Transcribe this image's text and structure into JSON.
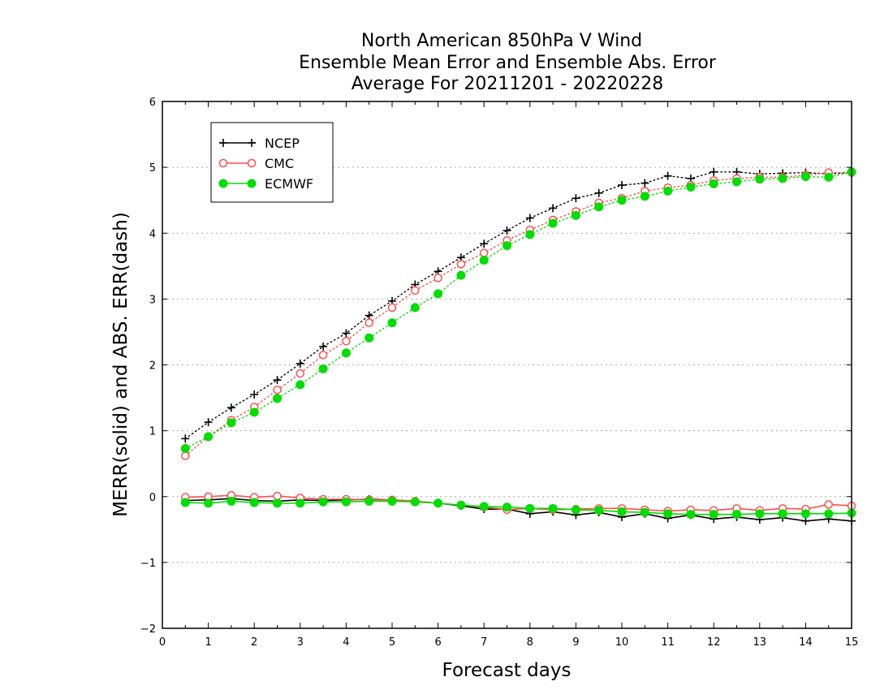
{
  "chart_data": {
    "type": "line",
    "title": [
      "North American 850hPa V Wind",
      "Ensemble Mean Error and Ensemble Abs. Error",
      "Average For 20211201 - 20220228"
    ],
    "xlabel": "Forecast days",
    "ylabel": "MERR(solid) and ABS. ERR(dash)",
    "xlim": [
      0,
      15
    ],
    "ylim": [
      -2,
      6
    ],
    "xticks": [
      0,
      1,
      2,
      3,
      4,
      5,
      6,
      7,
      8,
      9,
      10,
      11,
      12,
      13,
      14,
      15
    ],
    "yticks": [
      -2,
      -1,
      0,
      1,
      2,
      3,
      4,
      5,
      6
    ],
    "ytick_labels": [
      "−2",
      "−1",
      "0",
      "1",
      "2",
      "3",
      "4",
      "5",
      "6"
    ],
    "grid": "horizontal dotted",
    "legend_position": "top-left",
    "x": [
      0.5,
      1.0,
      1.5,
      2.0,
      2.5,
      3.0,
      3.5,
      4.0,
      4.5,
      5.0,
      5.5,
      6.0,
      6.5,
      7.0,
      7.5,
      8.0,
      8.5,
      9.0,
      9.5,
      10.0,
      10.5,
      11.0,
      11.5,
      12.0,
      12.5,
      13.0,
      13.5,
      14.0,
      14.5,
      15.0
    ],
    "series": [
      {
        "name": "NCEP",
        "color": "#000000",
        "marker": "plus",
        "abs_error": [
          0.88,
          1.13,
          1.35,
          1.55,
          1.77,
          2.02,
          2.28,
          2.48,
          2.75,
          2.97,
          3.22,
          3.42,
          3.63,
          3.84,
          4.04,
          4.23,
          4.38,
          4.53,
          4.61,
          4.73,
          4.76,
          4.87,
          4.83,
          4.93,
          4.93,
          4.9,
          4.91,
          4.92,
          4.9,
          4.92
        ],
        "mean_error": [
          -0.06,
          -0.05,
          -0.03,
          -0.06,
          -0.07,
          -0.05,
          -0.06,
          -0.05,
          -0.04,
          -0.05,
          -0.07,
          -0.1,
          -0.14,
          -0.19,
          -0.19,
          -0.26,
          -0.23,
          -0.28,
          -0.24,
          -0.31,
          -0.26,
          -0.33,
          -0.28,
          -0.34,
          -0.31,
          -0.35,
          -0.32,
          -0.37,
          -0.34,
          -0.37
        ]
      },
      {
        "name": "CMC",
        "color": "#ff4d4d",
        "marker": "open-circle",
        "abs_error": [
          0.62,
          0.91,
          1.16,
          1.36,
          1.62,
          1.87,
          2.15,
          2.36,
          2.64,
          2.87,
          3.13,
          3.32,
          3.53,
          3.7,
          3.89,
          4.05,
          4.2,
          4.33,
          4.46,
          4.53,
          4.64,
          4.69,
          4.73,
          4.8,
          4.83,
          4.85,
          4.85,
          4.88,
          4.92,
          4.92
        ],
        "mean_error": [
          -0.01,
          0.0,
          0.02,
          -0.01,
          0.01,
          -0.02,
          -0.04,
          -0.04,
          -0.05,
          -0.05,
          -0.07,
          -0.1,
          -0.13,
          -0.16,
          -0.2,
          -0.18,
          -0.2,
          -0.19,
          -0.18,
          -0.18,
          -0.2,
          -0.22,
          -0.2,
          -0.21,
          -0.18,
          -0.21,
          -0.18,
          -0.19,
          -0.12,
          -0.14
        ]
      },
      {
        "name": "ECMWF",
        "color": "#00dd00",
        "marker": "filled-circle",
        "abs_error": [
          0.73,
          0.91,
          1.12,
          1.28,
          1.49,
          1.7,
          1.94,
          2.18,
          2.41,
          2.64,
          2.87,
          3.08,
          3.36,
          3.59,
          3.81,
          3.98,
          4.15,
          4.27,
          4.4,
          4.5,
          4.56,
          4.64,
          4.7,
          4.75,
          4.78,
          4.82,
          4.83,
          4.86,
          4.85,
          4.93
        ],
        "mean_error": [
          -0.09,
          -0.1,
          -0.07,
          -0.09,
          -0.1,
          -0.1,
          -0.08,
          -0.08,
          -0.07,
          -0.07,
          -0.08,
          -0.1,
          -0.13,
          -0.15,
          -0.16,
          -0.18,
          -0.18,
          -0.2,
          -0.21,
          -0.23,
          -0.24,
          -0.26,
          -0.27,
          -0.27,
          -0.27,
          -0.26,
          -0.26,
          -0.26,
          -0.26,
          -0.25
        ]
      }
    ]
  }
}
